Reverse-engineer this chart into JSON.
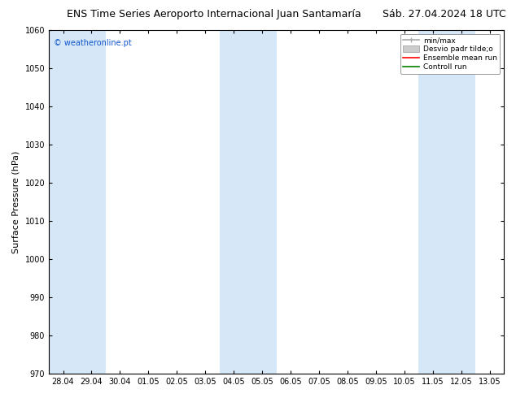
{
  "title_left": "ENS Time Series Aeroporto Internacional Juan Santamaría",
  "title_right": "Sáb. 27.04.2024 18 UTC",
  "ylabel": "Surface Pressure (hPa)",
  "ylim": [
    970,
    1060
  ],
  "yticks": [
    970,
    980,
    990,
    1000,
    1010,
    1020,
    1030,
    1040,
    1050,
    1060
  ],
  "x_labels": [
    "28.04",
    "29.04",
    "30.04",
    "01.05",
    "02.05",
    "03.05",
    "04.05",
    "05.05",
    "06.05",
    "07.05",
    "08.05",
    "09.05",
    "10.05",
    "11.05",
    "12.05",
    "13.05"
  ],
  "shaded_columns": [
    0,
    1,
    6,
    7,
    13,
    14
  ],
  "watermark": "© weatheronline.pt",
  "legend_labels": [
    "min/max",
    "Desvio padr tilde;o",
    "Ensemble mean run",
    "Controll run"
  ],
  "bg_color": "#ffffff",
  "plot_bg_color": "#ffffff",
  "shaded_color": "#d6e8f7",
  "title_fontsize": 9,
  "axis_fontsize": 8,
  "tick_fontsize": 7
}
